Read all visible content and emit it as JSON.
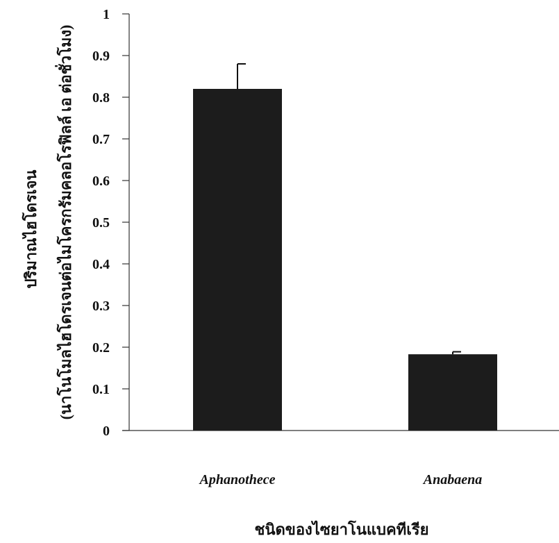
{
  "chart_data": {
    "type": "bar",
    "categories": [
      "Aphanothece",
      "Anabaena"
    ],
    "series": [
      {
        "values": [
          0.82,
          0.183
        ],
        "error": [
          0.06,
          0.006
        ]
      }
    ],
    "xlabel": "ชนิดของไซยาโนแบคทีเรีย",
    "ylabel_line1": "ปริมาณไฮโดรเจน",
    "ylabel_line2": "(นาโนโมลไฮโดรเจนต่อไมโครกรัมคลอโรฟิลล์ เอ ต่อชั่วโมง)",
    "ylim": [
      0,
      1
    ],
    "yticks": [
      "0",
      "0.1",
      "0.2",
      "0.3",
      "0.4",
      "0.5",
      "0.6",
      "0.7",
      "0.8",
      "0.9",
      "1"
    ],
    "ytick_values": [
      0,
      0.1,
      0.2,
      0.3,
      0.4,
      0.5,
      0.6,
      0.7,
      0.8,
      0.9,
      1
    ],
    "bar_color": "#1c1c1c",
    "grid": false
  }
}
